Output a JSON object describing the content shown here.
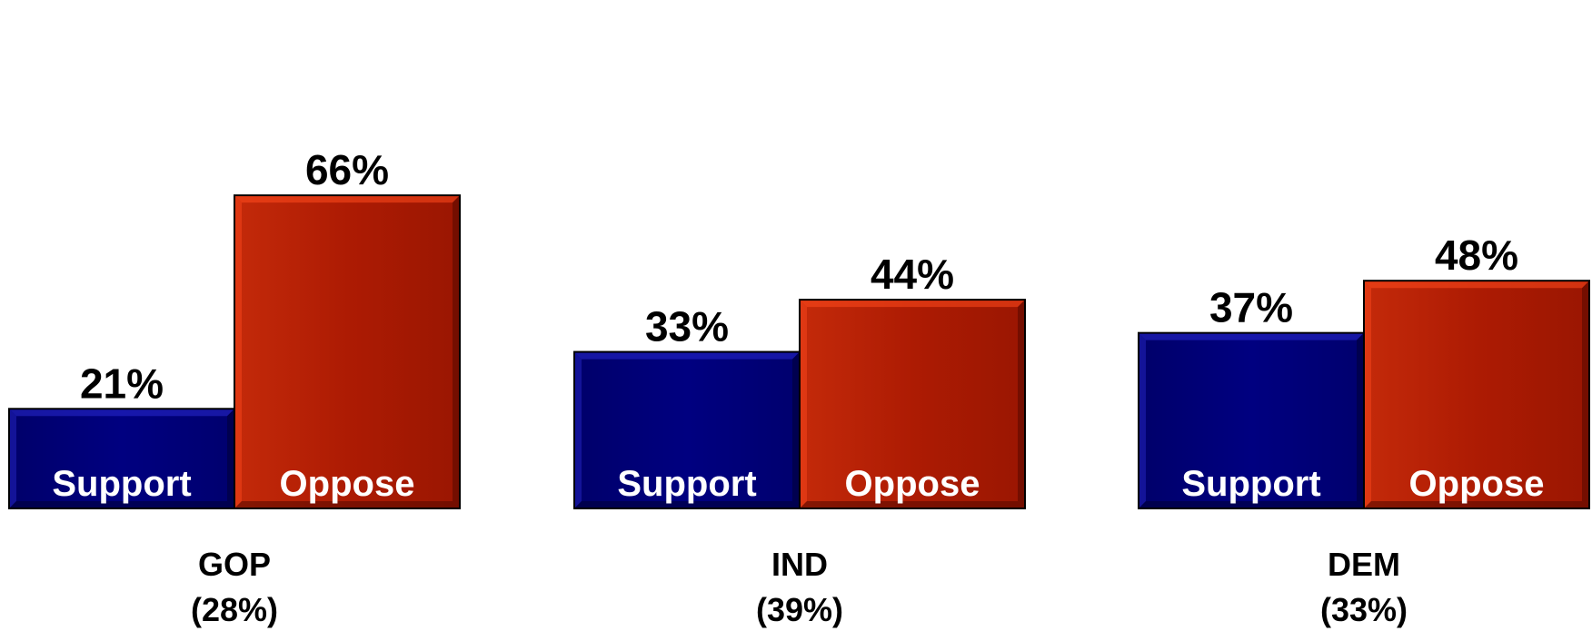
{
  "chart_data": {
    "type": "bar",
    "categories": [
      "GOP",
      "IND",
      "DEM"
    ],
    "category_shares": [
      "(28%)",
      "(39%)",
      "(33%)"
    ],
    "series": [
      {
        "label": "Support",
        "values": [
          21,
          33,
          37
        ],
        "value_labels": [
          "21%",
          "33%",
          "37%"
        ],
        "color": "#000080"
      },
      {
        "label": "Oppose",
        "values": [
          66,
          44,
          48
        ],
        "value_labels": [
          "66%",
          "44%",
          "48%"
        ],
        "color": "#AD1B03"
      }
    ],
    "ylim": [
      0,
      70
    ],
    "grid": false,
    "legend": "none"
  }
}
